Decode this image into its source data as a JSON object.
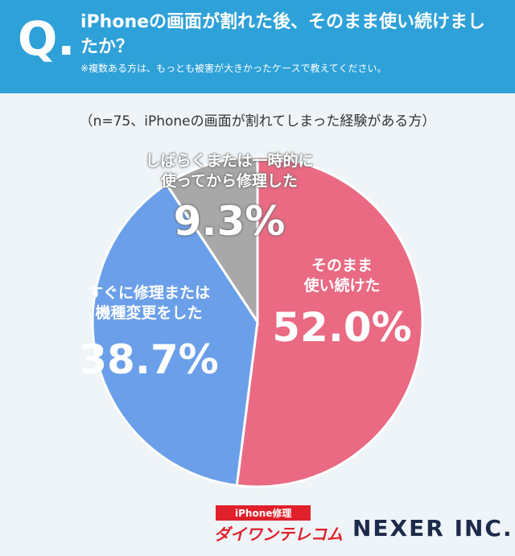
{
  "chart_data": {
    "type": "pie",
    "badge": "Q.",
    "title": "iPhoneの画面が割れた後、そのまま使い続けましたか？",
    "note": "※複数ある方は、もっとも被害が大きかったケースで教えてください。",
    "subtitle": "（n=75、iPhoneの画面が割れてしまった経験がある方）",
    "categories": [
      "そのまま\n使い続けた",
      "すぐに修理または\n機種変更をした",
      "しばらくまたは一時的に\n使ってから修理した"
    ],
    "values": [
      52.0,
      38.7,
      9.3
    ],
    "value_labels": [
      "52.0%",
      "38.7%",
      "9.3%"
    ],
    "colors": [
      "#e96a82",
      "#6b9fe9",
      "#a8a8a8"
    ],
    "logos": [
      "iPhone修理",
      "ダイワンテレコム",
      "NEXER INC."
    ]
  }
}
